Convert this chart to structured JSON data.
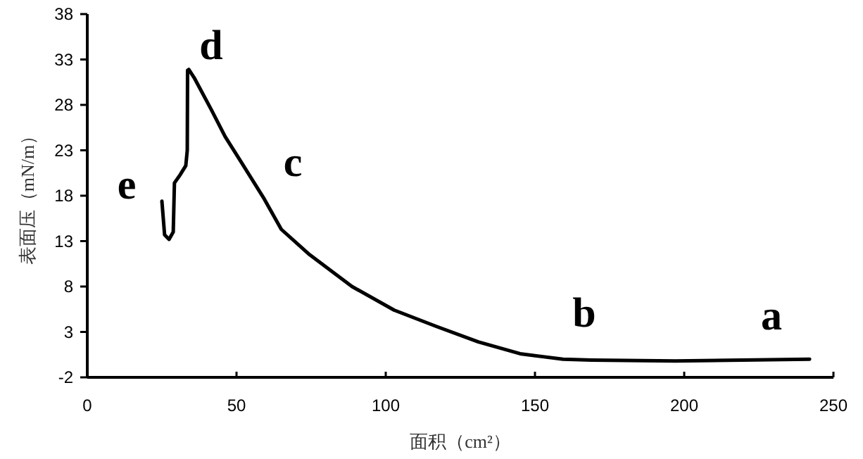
{
  "chart_data": {
    "type": "line",
    "xlabel": "面积（cm²）",
    "ylabel": "表面压（mN/m）",
    "xlim": [
      0,
      250
    ],
    "ylim": [
      -2,
      38
    ],
    "xticks": [
      0,
      50,
      100,
      150,
      200,
      250
    ],
    "yticks": [
      -2,
      3,
      8,
      13,
      18,
      23,
      28,
      33,
      38
    ],
    "grid": false,
    "marker": "none",
    "line_style": "solid",
    "series": [
      {
        "color": "#000000",
        "x": [
          25.0,
          25.9,
          27.4,
          28.8,
          29.2,
          31.1,
          33.0,
          33.5,
          33.6,
          34.0,
          35.8,
          41.5,
          46.2,
          51.0,
          59.0,
          65.0,
          74.5,
          88.7,
          102.8,
          117.0,
          131.0,
          145.0,
          159.4,
          169.0,
          197.0,
          242.0
        ],
        "values": [
          17.4,
          13.7,
          13.2,
          14.0,
          19.4,
          20.3,
          21.3,
          23.0,
          31.8,
          31.9,
          31.0,
          27.5,
          24.5,
          22.0,
          17.8,
          14.3,
          11.5,
          8.0,
          5.4,
          3.6,
          1.9,
          0.6,
          0.0,
          -0.1,
          -0.2,
          0.0
        ]
      }
    ],
    "annotations": [
      "a",
      "b",
      "c",
      "d",
      "e"
    ]
  }
}
